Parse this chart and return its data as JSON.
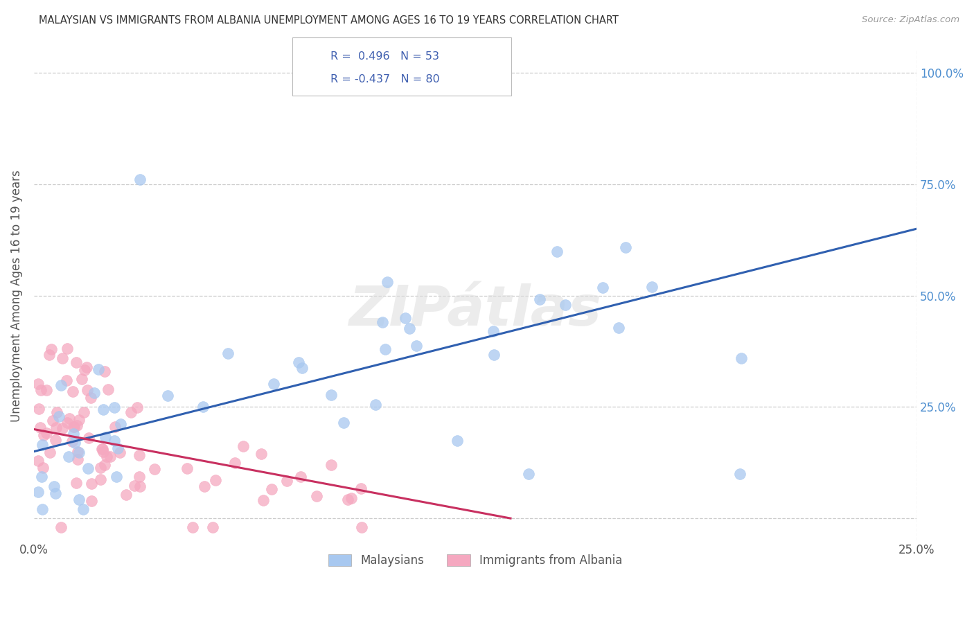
{
  "title": "MALAYSIAN VS IMMIGRANTS FROM ALBANIA UNEMPLOYMENT AMONG AGES 16 TO 19 YEARS CORRELATION CHART",
  "source": "Source: ZipAtlas.com",
  "ylabel_label": "Unemployment Among Ages 16 to 19 years",
  "xmin": 0.0,
  "xmax": 0.25,
  "ymin": -0.05,
  "ymax": 1.05,
  "legend_label_blue": "Malaysians",
  "legend_label_pink": "Immigrants from Albania",
  "blue_color": "#A8C8F0",
  "pink_color": "#F5A8C0",
  "blue_line_color": "#3060B0",
  "pink_line_color": "#C83060",
  "watermark": "ZIPátlas",
  "grid_color": "#CCCCCC",
  "title_color": "#333333",
  "right_tick_color": "#5090D0",
  "blue_line_x0": 0.0,
  "blue_line_y0": 0.15,
  "blue_line_x1": 0.25,
  "blue_line_y1": 0.65,
  "pink_line_x0": 0.0,
  "pink_line_y0": 0.2,
  "pink_line_x1": 0.135,
  "pink_line_y1": 0.0,
  "y_ticks": [
    0.0,
    0.25,
    0.5,
    0.75,
    1.0
  ],
  "y_tick_labels": [
    "",
    "25.0%",
    "50.0%",
    "75.0%",
    "100.0%"
  ],
  "x_ticks": [
    0.0,
    0.25
  ],
  "x_tick_labels": [
    "0.0%",
    "25.0%"
  ]
}
